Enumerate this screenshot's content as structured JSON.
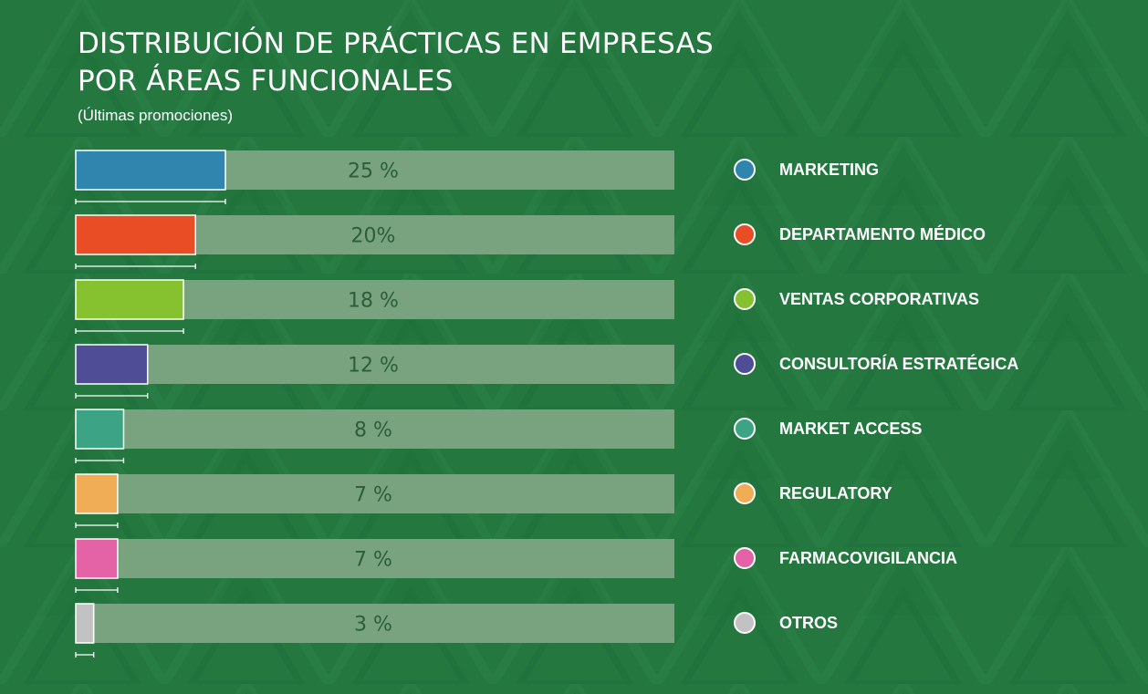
{
  "title_lines": [
    "DISTRIBUCIÓN DE PRÁCTICAS EN EMPRESAS",
    "POR ÁREAS FUNCIONALES"
  ],
  "subtitle": "(Últimas promociones)",
  "colors": {
    "background": "#23773f",
    "track": "#79a27e",
    "value_text": "#2a5f3a"
  },
  "chart_data": {
    "type": "bar",
    "orientation": "horizontal",
    "xlim": [
      0,
      100
    ],
    "categories": [
      "MARKETING",
      "DEPARTAMENTO MÉDICO",
      "VENTAS CORPORATIVAS",
      "CONSULTORÍA ESTRATÉGICA",
      "MARKET ACCESS",
      "REGULATORY",
      "FARMACOVIGILANCIA",
      "OTROS"
    ],
    "values": [
      25,
      20,
      18,
      12,
      8,
      7,
      7,
      3
    ],
    "value_labels": [
      "25 %",
      "20%",
      "18 %",
      "12 %",
      "8 %",
      "7 %",
      "7 %",
      "3 %"
    ],
    "colors": [
      "#2f85ad",
      "#e84d25",
      "#86c12f",
      "#4f4d96",
      "#3ca384",
      "#f0ad56",
      "#e463a7",
      "#c2c2c2"
    ],
    "legend_position": "right",
    "grid": false
  }
}
